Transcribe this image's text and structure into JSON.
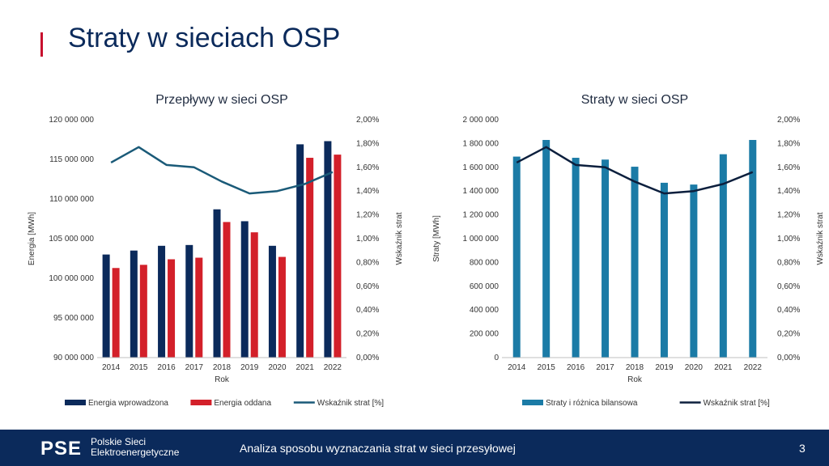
{
  "slide": {
    "title": "Straty w sieciach OSP",
    "accent_color": "#c8102e",
    "title_color": "#0b2a5b"
  },
  "footer": {
    "logo_text": "PSE",
    "company_line1": "Polskie Sieci",
    "company_line2": "Elektroenergetyczne",
    "text": "Analiza sposobu wyznaczania strat w sieci przesyłowej",
    "page_number": "3",
    "background": "#0b2a5b"
  },
  "chart_data": [
    {
      "type": "bar",
      "title": "Przepływy w sieci OSP",
      "xlabel": "Rok",
      "ylabel": "Energia [MWh]",
      "y2label": "Wskaźnik strat",
      "categories": [
        "2014",
        "2015",
        "2016",
        "2017",
        "2018",
        "2019",
        "2020",
        "2021",
        "2022"
      ],
      "ylim": [
        90000000,
        120000000
      ],
      "yticks": [
        "90 000 000",
        "95 000 000",
        "100 000 000",
        "105 000 000",
        "110 000 000",
        "115 000 000",
        "120 000 000"
      ],
      "y2lim": [
        0,
        2
      ],
      "y2ticks": [
        "0,00%",
        "0,20%",
        "0,40%",
        "0,60%",
        "0,80%",
        "1,00%",
        "1,20%",
        "1,40%",
        "1,60%",
        "1,80%",
        "2,00%"
      ],
      "series": [
        {
          "name": "Energia wprowadzona",
          "type": "bar",
          "color": "#0b2a5b",
          "values": [
            103000000,
            103500000,
            104100000,
            104200000,
            108700000,
            107200000,
            104100000,
            116900000,
            117300000
          ]
        },
        {
          "name": "Energia oddana",
          "type": "bar",
          "color": "#d3202a",
          "values": [
            101300000,
            101700000,
            102400000,
            102600000,
            107100000,
            105800000,
            102700000,
            115200000,
            115600000
          ]
        },
        {
          "name": "Wskaźnik strat [%]",
          "type": "line",
          "axis": "right",
          "color": "#1a5a78",
          "values": [
            1.64,
            1.77,
            1.62,
            1.6,
            1.48,
            1.38,
            1.4,
            1.46,
            1.56
          ]
        }
      ],
      "legend_position": "bottom",
      "grid": false
    },
    {
      "type": "bar",
      "title": "Straty w sieci OSP",
      "xlabel": "Rok",
      "ylabel": "Straty [MWh]",
      "y2label": "Wskaźnik strat",
      "categories": [
        "2014",
        "2015",
        "2016",
        "2017",
        "2018",
        "2019",
        "2020",
        "2021",
        "2022"
      ],
      "ylim": [
        0,
        2000000
      ],
      "yticks": [
        "0",
        "200 000",
        "400 000",
        "600 000",
        "800 000",
        "1 000 000",
        "1 200 000",
        "1 400 000",
        "1 600 000",
        "1 800 000",
        "2 000 000"
      ],
      "y2lim": [
        0,
        2
      ],
      "y2ticks": [
        "0,00%",
        "0,20%",
        "0,40%",
        "0,60%",
        "0,80%",
        "1,00%",
        "1,20%",
        "1,40%",
        "1,60%",
        "1,80%",
        "2,00%"
      ],
      "series": [
        {
          "name": "Straty i różnica bilansowa",
          "type": "bar",
          "color": "#1b7ba6",
          "values": [
            1690000,
            1830000,
            1680000,
            1665000,
            1605000,
            1470000,
            1455000,
            1710000,
            1830000
          ]
        },
        {
          "name": "Wskaźnik strat [%]",
          "type": "line",
          "axis": "right",
          "color": "#0c1f3d",
          "values": [
            1.64,
            1.77,
            1.62,
            1.6,
            1.48,
            1.38,
            1.4,
            1.46,
            1.56
          ]
        }
      ],
      "legend_position": "bottom",
      "grid": false
    }
  ]
}
